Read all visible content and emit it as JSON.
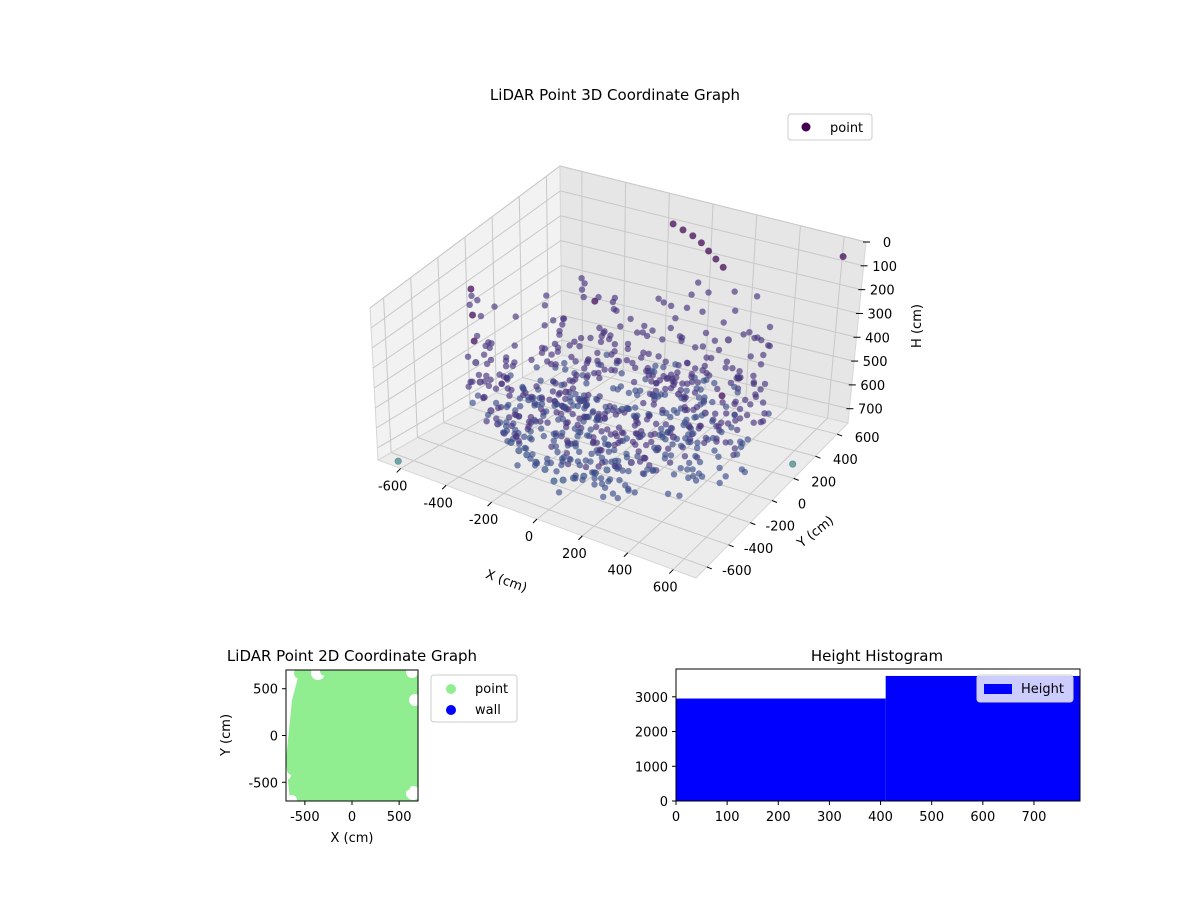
{
  "chart_data": [
    {
      "type": "scatter",
      "title": "LiDAR Point 3D Coordinate Graph",
      "xlabel": "X (cm)",
      "ylabel": "Y (cm)",
      "zlabel": "H (cm)",
      "xlim": [
        -700,
        700
      ],
      "ylim": [
        -700,
        700
      ],
      "zlim": [
        0,
        760
      ],
      "z_inverted": true,
      "x_ticks": [
        -600,
        -400,
        -200,
        0,
        200,
        400,
        600
      ],
      "y_ticks": [
        -600,
        -400,
        -200,
        0,
        200,
        400,
        600
      ],
      "z_ticks": [
        0,
        100,
        200,
        300,
        400,
        500,
        600,
        700
      ],
      "legend": {
        "position": "top-right",
        "entries": [
          "point"
        ]
      },
      "colormap": "viridis",
      "marker_color": "#440154",
      "series": [
        {
          "name": "point",
          "x": [
            -560,
            -520,
            -480,
            -440,
            -400,
            -360,
            -320,
            -280,
            -240,
            -200,
            -160,
            -120,
            -80,
            -40,
            0,
            40,
            80,
            120,
            160,
            200,
            240,
            280,
            320,
            360,
            400,
            440,
            480,
            520,
            560,
            -100,
            -60,
            -20,
            20,
            60,
            100,
            140,
            -300,
            300,
            0,
            200,
            -200,
            650,
            690,
            -640
          ],
          "y": [
            -200,
            -260,
            -320,
            -380,
            -420,
            -460,
            -480,
            -500,
            -520,
            -540,
            -550,
            -560,
            -560,
            -560,
            -560,
            -560,
            -550,
            -540,
            -520,
            -500,
            -480,
            -450,
            -420,
            -380,
            -330,
            -280,
            -220,
            -160,
            -100,
            560,
            570,
            580,
            580,
            570,
            560,
            550,
            300,
            320,
            0,
            100,
            -100,
            600,
            200,
            -650
          ],
          "h": [
            100,
            180,
            260,
            320,
            380,
            420,
            460,
            500,
            520,
            540,
            560,
            560,
            580,
            600,
            640,
            620,
            600,
            580,
            560,
            540,
            520,
            500,
            480,
            440,
            400,
            360,
            320,
            260,
            200,
            40,
            60,
            80,
            100,
            120,
            140,
            160,
            300,
            320,
            560,
            480,
            500,
            20,
            700,
            760
          ]
        }
      ]
    },
    {
      "type": "scatter",
      "title": "LiDAR Point 2D Coordinate Graph",
      "xlabel": "X (cm)",
      "ylabel": "Y (cm)",
      "xlim": [
        -700,
        700
      ],
      "ylim": [
        -700,
        700
      ],
      "x_ticks": [
        -500,
        0,
        500
      ],
      "y_ticks": [
        -500,
        0,
        500
      ],
      "legend": {
        "position": "outside right",
        "entries": [
          "point",
          "wall"
        ]
      },
      "series": [
        {
          "name": "point",
          "color": "#90ee90",
          "fill": "dense cloud covering most of the axes"
        },
        {
          "name": "wall",
          "color": "#0000ff"
        }
      ]
    },
    {
      "type": "bar",
      "subtype": "histogram",
      "title": "Height Histogram",
      "xlim": [
        0,
        790
      ],
      "ylim": [
        0,
        3800
      ],
      "x_ticks": [
        0,
        100,
        200,
        300,
        400,
        500,
        600,
        700
      ],
      "y_ticks": [
        0,
        1000,
        2000,
        3000
      ],
      "legend": {
        "position": "top-right",
        "entries": [
          "Height"
        ]
      },
      "series": [
        {
          "name": "Height",
          "color": "#0000ff",
          "bins": [
            {
              "from": 0,
              "to": 410,
              "count": 2950
            },
            {
              "from": 410,
              "to": 790,
              "count": 3600
            }
          ]
        }
      ]
    }
  ]
}
